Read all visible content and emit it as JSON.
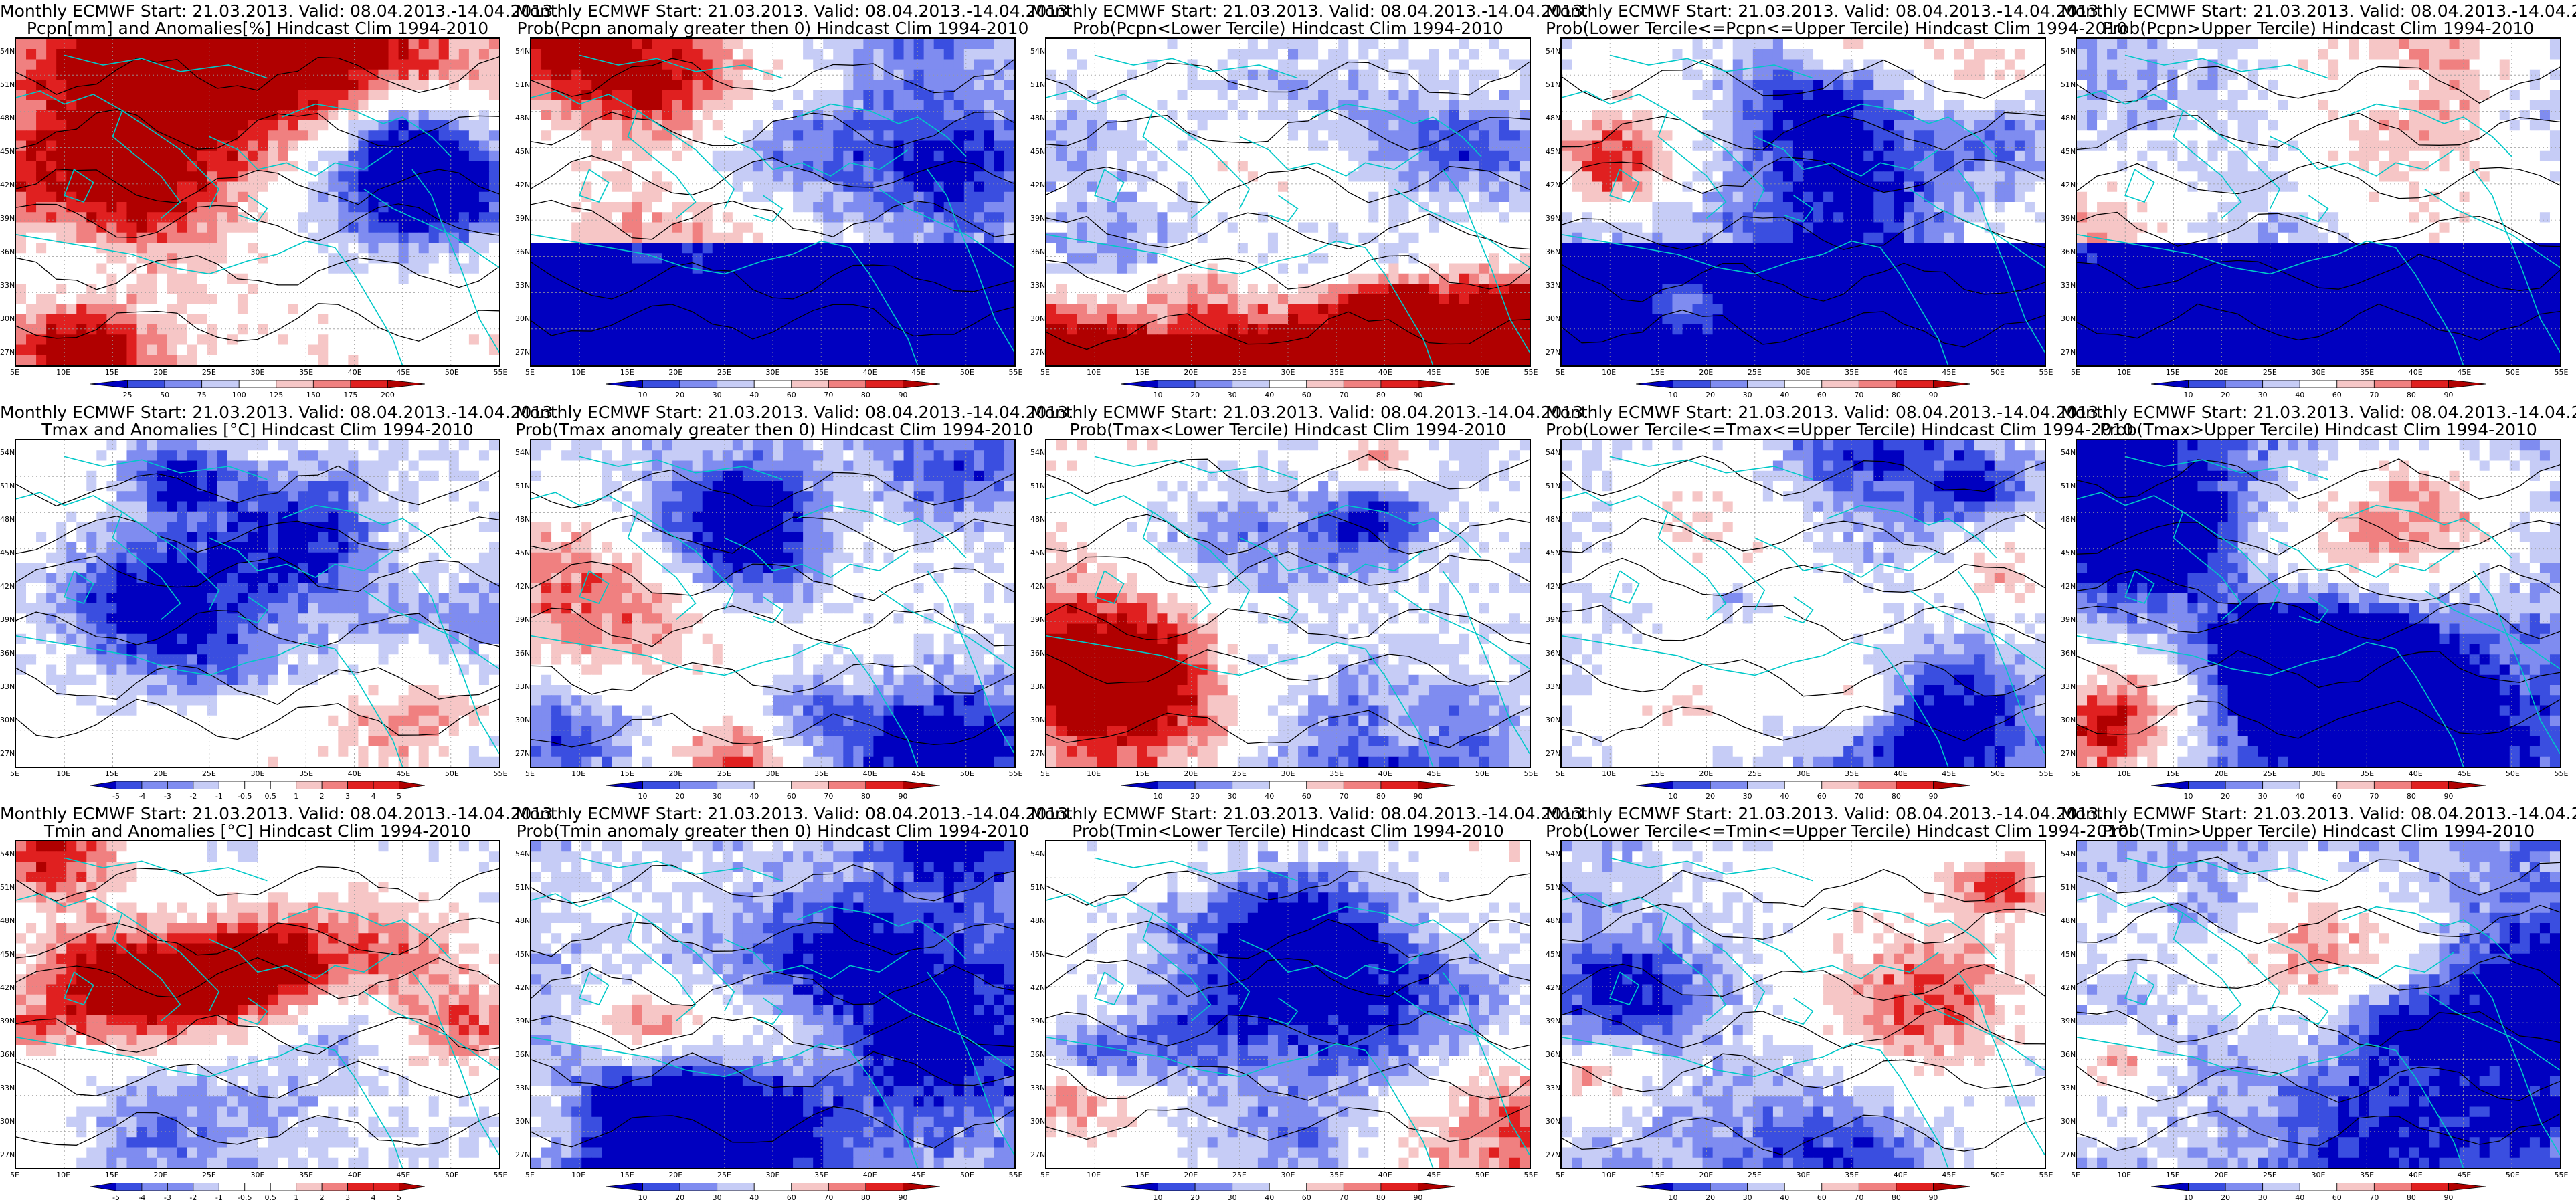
{
  "title_line1": "Monthly ECMWF Start: 21.03.2013. Valid: 08.04.2013.-14.04.2013.",
  "lat_ticks": [
    "54N",
    "51N",
    "48N",
    "45N",
    "42N",
    "39N",
    "36N",
    "33N",
    "30N",
    "27N"
  ],
  "lon_ticks": [
    "5E",
    "10E",
    "15E",
    "20E",
    "25E",
    "30E",
    "35E",
    "40E",
    "45E",
    "50E",
    "55E"
  ],
  "prob_ticks": [
    "10",
    "20",
    "30",
    "40",
    "60",
    "70",
    "80",
    "90"
  ],
  "precip_anom_ticks": [
    "25",
    "50",
    "75",
    "100",
    "125",
    "150",
    "175",
    "200"
  ],
  "temp_anom_ticks": [
    "-5",
    "-4",
    "-3",
    "-2",
    "-1",
    "-0.5",
    "0.5",
    "1",
    "2",
    "3",
    "4",
    "5"
  ],
  "colors": {
    "deep_blue": "#0000c0",
    "blue": "#3a4ee0",
    "mid_blue": "#7f8cf0",
    "light_blue": "#c6ccf6",
    "white": "#ffffff",
    "light_red": "#f6c6c6",
    "mid_red": "#f08080",
    "red": "#e02020",
    "dark_red": "#b00000",
    "coast": "#00c8c8",
    "contour": "#000000"
  },
  "panels": [
    {
      "row": 0,
      "col": 0,
      "line2": "Pcpn[mm] and Anomalies[%] Hindcast Clim 1994-2010",
      "scale": "precip",
      "bias": 0.15
    },
    {
      "row": 0,
      "col": 1,
      "line2": "Prob(Pcpn anomaly greater then 0) Hindcast Clim 1994-2010",
      "scale": "prob",
      "bias": -0.35
    },
    {
      "row": 0,
      "col": 2,
      "line2": "Prob(Pcpn<Lower Tercile) Hindcast Clim 1994-2010",
      "scale": "prob",
      "bias": -0.1
    },
    {
      "row": 0,
      "col": 3,
      "line2": "Prob(Lower Tercile<=Pcpn<=Upper Tercile) Hindcast Clim 1994-2010",
      "scale": "prob",
      "bias": -0.45
    },
    {
      "row": 0,
      "col": 4,
      "line2": "Prob(Pcpn>Upper Tercile) Hindcast Clim 1994-2010",
      "scale": "prob",
      "bias": -0.4
    },
    {
      "row": 1,
      "col": 0,
      "line2": "Tmax and Anomalies [°C] Hindcast Clim 1994-2010",
      "scale": "temp",
      "bias": -0.05
    },
    {
      "row": 1,
      "col": 1,
      "line2": "Prob(Tmax anomaly greater then 0) Hindcast Clim 1994-2010",
      "scale": "prob",
      "bias": -0.3
    },
    {
      "row": 1,
      "col": 2,
      "line2": "Prob(Tmax<Lower Tercile) Hindcast Clim 1994-2010",
      "scale": "prob",
      "bias": -0.1
    },
    {
      "row": 1,
      "col": 3,
      "line2": "Prob(Lower Tercile<=Tmax<=Upper Tercile) Hindcast Clim 1994-2010",
      "scale": "prob",
      "bias": -0.3
    },
    {
      "row": 1,
      "col": 4,
      "line2": "Prob(Tmax>Upper Tercile) Hindcast Clim 1994-2010",
      "scale": "prob",
      "bias": -0.55
    },
    {
      "row": 2,
      "col": 0,
      "line2": "Tmin and Anomalies [°C] Hindcast Clim 1994-2010",
      "scale": "temp",
      "bias": -0.2
    },
    {
      "row": 2,
      "col": 1,
      "line2": "Prob(Tmin anomaly greater then 0) Hindcast Clim 1994-2010",
      "scale": "prob",
      "bias": -0.35
    },
    {
      "row": 2,
      "col": 2,
      "line2": "Prob(Tmin<Lower Tercile) Hindcast Clim 1994-2010",
      "scale": "prob",
      "bias": -0.05
    },
    {
      "row": 2,
      "col": 3,
      "line2": "Prob(Lower Tercile<=Tmin<=Upper Tercile) Hindcast Clim 1994-2010",
      "scale": "prob",
      "bias": -0.35
    },
    {
      "row": 2,
      "col": 4,
      "line2": "Prob(Tmin>Upper Tercile) Hindcast Clim 1994-2010",
      "scale": "prob",
      "bias": -0.55
    }
  ]
}
